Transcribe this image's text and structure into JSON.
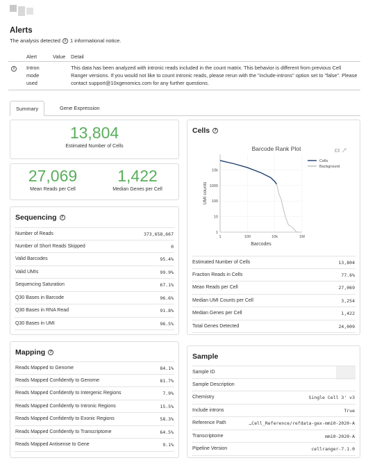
{
  "alerts": {
    "title": "Alerts",
    "subtitle_pre": "The analysis detected",
    "subtitle_post": "1 informational notice.",
    "columns": [
      "Alert",
      "Value",
      "Detail"
    ],
    "rows": [
      {
        "alert": "Intron mode used",
        "value": "",
        "detail": "This data has been analyzed with intronic reads included in the count matrix. This behavior is different from previous Cell Ranger versions. If you would not like to count intronic reads, please rerun with the \"include-introns\" option set to \"false\". Please contact support@10xgenomics.com for any further questions."
      }
    ]
  },
  "tabs": {
    "summary": "Summary",
    "gene_expression": "Gene Expression"
  },
  "hero": {
    "cells_value": "13,804",
    "cells_label": "Estimated Number of Cells",
    "reads_value": "27,069",
    "reads_label": "Mean Reads per Cell",
    "genes_value": "1,422",
    "genes_label": "Median Genes per Cell"
  },
  "sequencing": {
    "title": "Sequencing",
    "rows": [
      {
        "k": "Number of Reads",
        "v": "373,658,667"
      },
      {
        "k": "Number of Short Reads Skipped",
        "v": "0"
      },
      {
        "k": "Valid Barcodes",
        "v": "95.4%"
      },
      {
        "k": "Valid UMIs",
        "v": "99.9%"
      },
      {
        "k": "Sequencing Saturation",
        "v": "67.1%"
      },
      {
        "k": "Q30 Bases in Barcode",
        "v": "96.6%"
      },
      {
        "k": "Q30 Bases in RNA Read",
        "v": "91.8%"
      },
      {
        "k": "Q30 Bases in UMI",
        "v": "96.5%"
      }
    ]
  },
  "mapping": {
    "title": "Mapping",
    "rows": [
      {
        "k": "Reads Mapped to Genome",
        "v": "84.1%"
      },
      {
        "k": "Reads Mapped Confidently to Genome",
        "v": "81.7%"
      },
      {
        "k": "Reads Mapped Confidently to Intergenic Regions",
        "v": "7.9%"
      },
      {
        "k": "Reads Mapped Confidently to Intronic Regions",
        "v": "15.5%"
      },
      {
        "k": "Reads Mapped Confidently to Exonic Regions",
        "v": "58.3%"
      },
      {
        "k": "Reads Mapped Confidently to Transcriptome",
        "v": "64.5%"
      },
      {
        "k": "Reads Mapped Antisense to Gene",
        "v": "9.1%"
      }
    ]
  },
  "cells": {
    "title": "Cells",
    "rows": [
      {
        "k": "Estimated Number of Cells",
        "v": "13,804"
      },
      {
        "k": "Fraction Reads in Cells",
        "v": "77.6%"
      },
      {
        "k": "Mean Reads per Cell",
        "v": "27,069"
      },
      {
        "k": "Median UMI Counts per Cell",
        "v": "3,254"
      },
      {
        "k": "Median Genes per Cell",
        "v": "1,422"
      },
      {
        "k": "Total Genes Detected",
        "v": "24,009"
      }
    ]
  },
  "sample": {
    "title": "Sample",
    "rows": [
      {
        "k": "Sample ID",
        "v": ""
      },
      {
        "k": "Sample Description",
        "v": ""
      },
      {
        "k": "Chemistry",
        "v": "Single Cell 3' v3"
      },
      {
        "k": "Include introns",
        "v": "True"
      },
      {
        "k": "Reference Path",
        "v": "…Cell_Reference/refdata-gex-mm10-2020-A"
      },
      {
        "k": "Transcriptome",
        "v": "mm10-2020-A"
      },
      {
        "k": "Pipeline Version",
        "v": "cellranger-7.1.0"
      }
    ]
  },
  "chart_data": {
    "type": "line",
    "title": "Barcode Rank Plot",
    "xlabel": "Barcodes",
    "ylabel": "UMI counts",
    "xscale": "log",
    "yscale": "log",
    "xlim": [
      1,
      1000000
    ],
    "ylim": [
      1,
      100000
    ],
    "xticks": [
      "1",
      "100",
      "10k",
      "1M"
    ],
    "yticks": [
      "1",
      "10",
      "100",
      "1000",
      "10k"
    ],
    "legend_position": "top-right",
    "series": [
      {
        "name": "Cells",
        "color": "#1f3f6e",
        "x": [
          1,
          10,
          100,
          1000,
          5000,
          10000,
          13804
        ],
        "y": [
          40000,
          25000,
          14000,
          6500,
          3200,
          1800,
          1200
        ]
      },
      {
        "name": "Background",
        "color": "#b8b8b8",
        "x": [
          13804,
          16000,
          20000,
          30000,
          40000,
          60000,
          100000,
          200000,
          400000,
          700000
        ],
        "y": [
          1200,
          700,
          300,
          120,
          40,
          10,
          3,
          2,
          1,
          1
        ]
      }
    ]
  }
}
